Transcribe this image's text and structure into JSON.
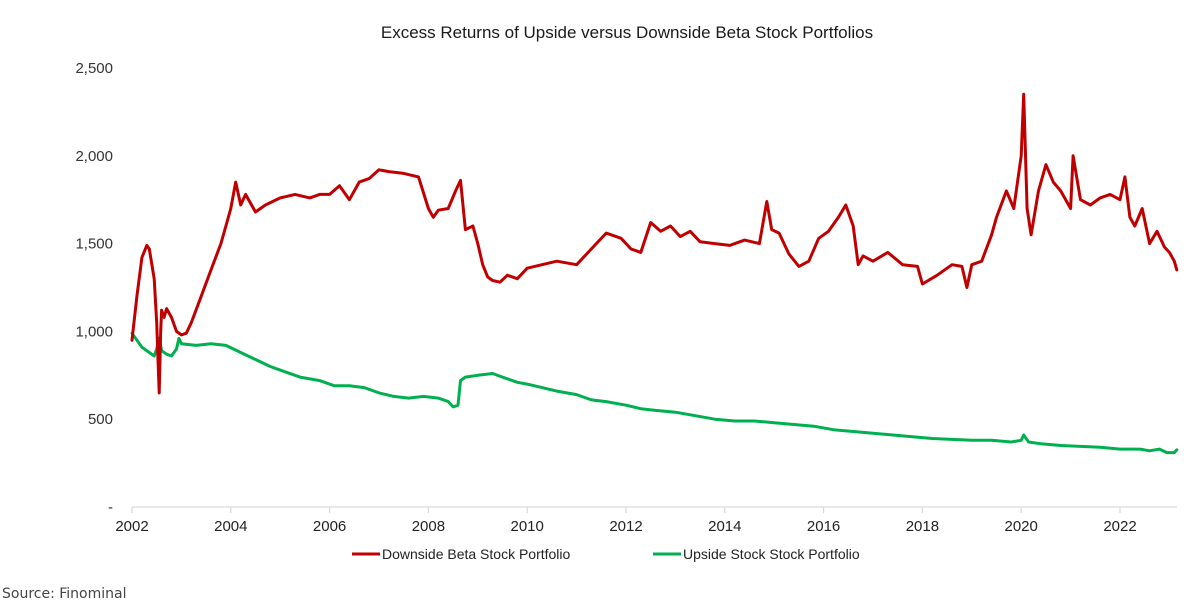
{
  "chart_data": {
    "type": "line",
    "title": "Excess Returns of Upside versus Downside Beta Stock Portfolios",
    "xlabel": "",
    "ylabel": "",
    "xlim": [
      2002,
      2023.15
    ],
    "ylim": [
      0,
      2500
    ],
    "x_ticks": [
      2002,
      2004,
      2006,
      2008,
      2010,
      2012,
      2014,
      2016,
      2018,
      2020,
      2022
    ],
    "x_tick_labels": [
      "2002",
      "2004",
      "2006",
      "2008",
      "2010",
      "2012",
      "2014",
      "2016",
      "2018",
      "2020",
      "2022"
    ],
    "y_ticks": [
      0,
      500,
      1000,
      1500,
      2000,
      2500
    ],
    "y_tick_labels": [
      "-",
      "500",
      "1,000",
      "1,500",
      "2,000",
      "2,500"
    ],
    "grid": false,
    "legend_position": "bottom",
    "series": [
      {
        "name": "Downside Beta Stock Portfolio",
        "color": "#c00000",
        "x": [
          2002.0,
          2002.1,
          2002.2,
          2002.3,
          2002.35,
          2002.45,
          2002.5,
          2002.55,
          2002.58,
          2002.6,
          2002.65,
          2002.7,
          2002.8,
          2002.9,
          2003.0,
          2003.1,
          2003.2,
          2003.4,
          2003.6,
          2003.8,
          2003.9,
          2004.0,
          2004.1,
          2004.2,
          2004.3,
          2004.5,
          2004.7,
          2005.0,
          2005.3,
          2005.6,
          2005.8,
          2006.0,
          2006.2,
          2006.4,
          2006.6,
          2006.8,
          2007.0,
          2007.2,
          2007.5,
          2007.8,
          2008.0,
          2008.1,
          2008.2,
          2008.4,
          2008.55,
          2008.65,
          2008.75,
          2008.9,
          2009.0,
          2009.1,
          2009.2,
          2009.3,
          2009.45,
          2009.6,
          2009.8,
          2010.0,
          2010.3,
          2010.6,
          2011.0,
          2011.3,
          2011.6,
          2011.9,
          2012.1,
          2012.3,
          2012.5,
          2012.7,
          2012.9,
          2013.1,
          2013.3,
          2013.5,
          2013.8,
          2014.1,
          2014.4,
          2014.7,
          2014.85,
          2014.95,
          2015.1,
          2015.3,
          2015.5,
          2015.7,
          2015.9,
          2016.1,
          2016.3,
          2016.45,
          2016.6,
          2016.7,
          2016.8,
          2017.0,
          2017.3,
          2017.6,
          2017.9,
          2018.0,
          2018.3,
          2018.6,
          2018.8,
          2018.9,
          2019.0,
          2019.2,
          2019.4,
          2019.5,
          2019.7,
          2019.85,
          2020.0,
          2020.05,
          2020.12,
          2020.2,
          2020.35,
          2020.5,
          2020.65,
          2020.8,
          2021.0,
          2021.05,
          2021.2,
          2021.4,
          2021.6,
          2021.8,
          2022.0,
          2022.1,
          2022.2,
          2022.3,
          2022.45,
          2022.6,
          2022.75,
          2022.9,
          2023.0,
          2023.1,
          2023.15
        ],
        "y": [
          950,
          1200,
          1420,
          1490,
          1470,
          1300,
          1050,
          650,
          1000,
          1120,
          1080,
          1130,
          1080,
          1000,
          980,
          990,
          1050,
          1200,
          1350,
          1500,
          1600,
          1700,
          1850,
          1720,
          1780,
          1680,
          1720,
          1760,
          1780,
          1760,
          1780,
          1780,
          1830,
          1750,
          1850,
          1870,
          1920,
          1910,
          1900,
          1880,
          1700,
          1650,
          1690,
          1700,
          1800,
          1860,
          1580,
          1600,
          1500,
          1380,
          1310,
          1290,
          1280,
          1320,
          1300,
          1360,
          1380,
          1400,
          1380,
          1470,
          1560,
          1530,
          1470,
          1450,
          1620,
          1570,
          1600,
          1540,
          1570,
          1510,
          1500,
          1490,
          1520,
          1500,
          1740,
          1580,
          1560,
          1440,
          1370,
          1400,
          1530,
          1570,
          1650,
          1720,
          1600,
          1380,
          1430,
          1400,
          1450,
          1380,
          1370,
          1270,
          1320,
          1380,
          1370,
          1250,
          1380,
          1400,
          1550,
          1650,
          1800,
          1700,
          2000,
          2350,
          1700,
          1550,
          1800,
          1950,
          1850,
          1800,
          1700,
          2000,
          1750,
          1720,
          1760,
          1780,
          1750,
          1880,
          1650,
          1600,
          1700,
          1500,
          1570,
          1480,
          1450,
          1400,
          1350
        ]
      },
      {
        "name": "Upside Stock Stock Portfolio",
        "color": "#00b050",
        "x": [
          2002.0,
          2002.1,
          2002.2,
          2002.35,
          2002.45,
          2002.5,
          2002.55,
          2002.6,
          2002.7,
          2002.8,
          2002.9,
          2002.95,
          2003.0,
          2003.3,
          2003.6,
          2003.9,
          2004.2,
          2004.5,
          2004.8,
          2005.1,
          2005.4,
          2005.8,
          2006.1,
          2006.4,
          2006.7,
          2007.0,
          2007.3,
          2007.6,
          2007.9,
          2008.2,
          2008.4,
          2008.5,
          2008.6,
          2008.65,
          2008.75,
          2009.0,
          2009.3,
          2009.5,
          2009.8,
          2010.0,
          2010.3,
          2010.6,
          2011.0,
          2011.3,
          2011.6,
          2012.0,
          2012.3,
          2012.6,
          2013.0,
          2013.4,
          2013.8,
          2014.2,
          2014.6,
          2015.0,
          2015.4,
          2015.8,
          2016.2,
          2016.6,
          2017.0,
          2017.4,
          2017.8,
          2018.2,
          2018.6,
          2019.0,
          2019.4,
          2019.8,
          2020.0,
          2020.05,
          2020.15,
          2020.4,
          2020.8,
          2021.2,
          2021.6,
          2022.0,
          2022.4,
          2022.6,
          2022.8,
          2022.95,
          2023.1,
          2023.15
        ],
        "y": [
          990,
          950,
          910,
          880,
          860,
          900,
          960,
          890,
          870,
          860,
          900,
          960,
          930,
          920,
          930,
          920,
          880,
          840,
          800,
          770,
          740,
          720,
          690,
          690,
          680,
          650,
          630,
          620,
          630,
          620,
          600,
          570,
          580,
          720,
          740,
          750,
          760,
          740,
          710,
          700,
          680,
          660,
          640,
          610,
          600,
          580,
          560,
          550,
          540,
          520,
          500,
          490,
          490,
          480,
          470,
          460,
          440,
          430,
          420,
          410,
          400,
          390,
          385,
          380,
          380,
          370,
          380,
          410,
          370,
          360,
          350,
          345,
          340,
          330,
          330,
          320,
          330,
          310,
          310,
          325
        ]
      }
    ]
  },
  "source": "Source: Finominal"
}
